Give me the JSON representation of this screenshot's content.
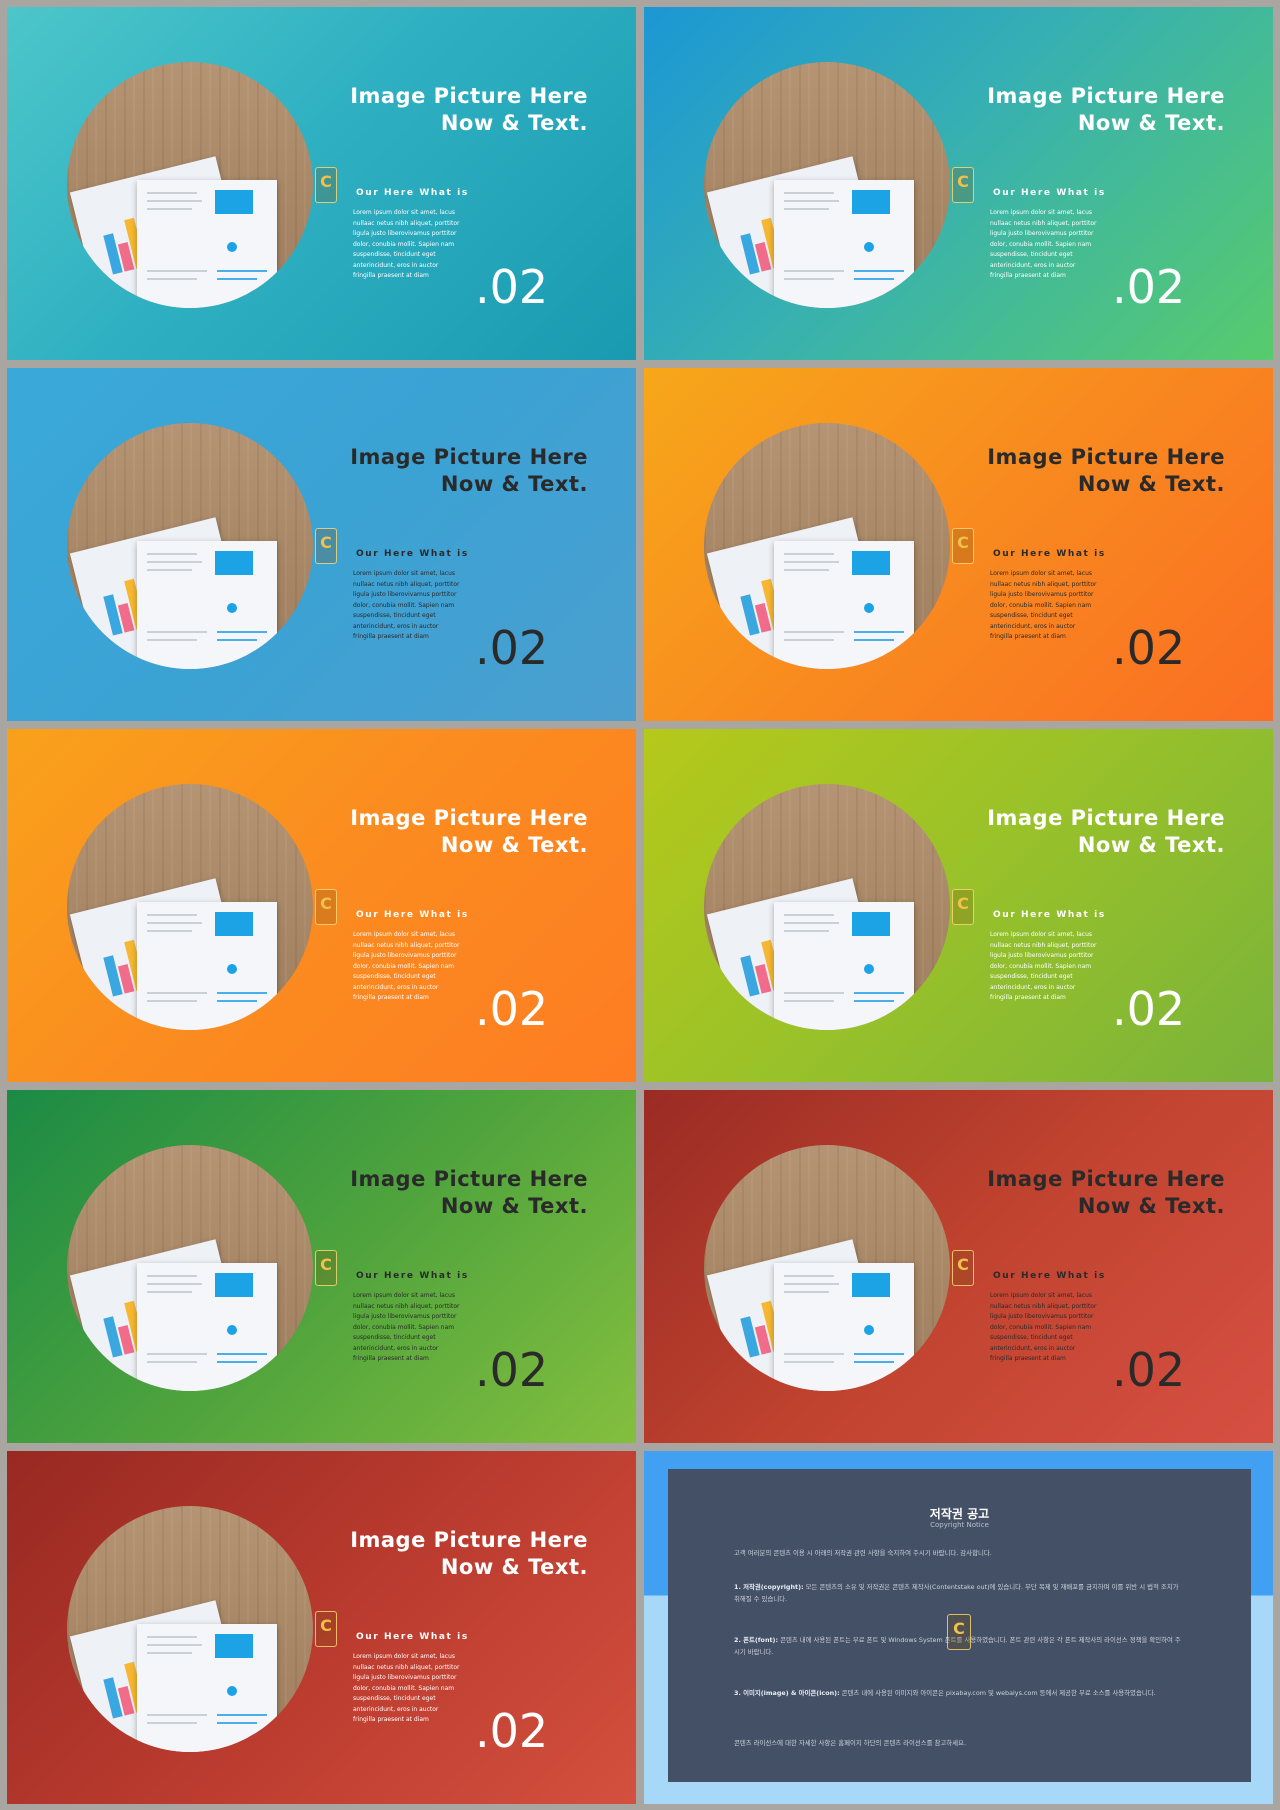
{
  "slides": [
    {
      "title_line1": "Image Picture Here",
      "title_line2": "Now & Text.",
      "subtitle": "Our Here What is",
      "body": "Lorem ipsum dolor sit amet, lacus nullaac netus nibh aliquet, porttitor ligula justo liberovivamus porttitor dolor, conubia mollit. Sapien nam suspendisse, tincidunt eget anterincidunt, eros in auctor fringilla praesent at diam",
      "number": ".02",
      "scheme": "light"
    },
    {
      "title_line1": "Image Picture Here",
      "title_line2": "Now & Text.",
      "subtitle": "Our Here What is",
      "body": "Lorem ipsum dolor sit amet, lacus nullaac netus nibh aliquet, porttitor ligula justo liberovivamus porttitor dolor, conubia mollit. Sapien nam suspendisse, tincidunt eget anterincidunt, eros in auctor fringilla praesent at diam",
      "number": ".02",
      "scheme": "light"
    },
    {
      "title_line1": "Image Picture Here",
      "title_line2": "Now & Text.",
      "subtitle": "Our Here What is",
      "body": "Lorem ipsum dolor sit amet, lacus nullaac netus nibh aliquet, porttitor ligula justo liberovivamus porttitor dolor, conubia mollit. Sapien nam suspendisse, tincidunt eget anterincidunt, eros in auctor fringilla praesent at diam",
      "number": ".02",
      "scheme": "dark"
    },
    {
      "title_line1": "Image Picture Here",
      "title_line2": "Now & Text.",
      "subtitle": "Our Here What is",
      "body": "Lorem ipsum dolor sit amet, lacus nullaac netus nibh aliquet, porttitor ligula justo liberovivamus porttitor dolor, conubia mollit. Sapien nam suspendisse, tincidunt eget anterincidunt, eros in auctor fringilla praesent at diam",
      "number": ".02",
      "scheme": "dark"
    },
    {
      "title_line1": "Image Picture Here",
      "title_line2": "Now & Text.",
      "subtitle": "Our Here What is",
      "body": "Lorem ipsum dolor sit amet, lacus nullaac netus nibh aliquet, porttitor ligula justo liberovivamus porttitor dolor, conubia mollit. Sapien nam suspendisse, tincidunt eget anterincidunt, eros in auctor fringilla praesent at diam",
      "number": ".02",
      "scheme": "light"
    },
    {
      "title_line1": "Image Picture Here",
      "title_line2": "Now & Text.",
      "subtitle": "Our Here What is",
      "body": "Lorem ipsum dolor sit amet, lacus nullaac netus nibh aliquet, porttitor ligula justo liberovivamus porttitor dolor, conubia mollit. Sapien nam suspendisse, tincidunt eget anterincidunt, eros in auctor fringilla praesent at diam",
      "number": ".02",
      "scheme": "light"
    },
    {
      "title_line1": "Image Picture Here",
      "title_line2": "Now & Text.",
      "subtitle": "Our Here What is",
      "body": "Lorem ipsum dolor sit amet, lacus nullaac netus nibh aliquet, porttitor ligula justo liberovivamus porttitor dolor, conubia mollit. Sapien nam suspendisse, tincidunt eget anterincidunt, eros in auctor fringilla praesent at diam",
      "number": ".02",
      "scheme": "dark"
    },
    {
      "title_line1": "Image Picture Here",
      "title_line2": "Now & Text.",
      "subtitle": "Our Here What is",
      "body": "Lorem ipsum dolor sit amet, lacus nullaac netus nibh aliquet, porttitor ligula justo liberovivamus porttitor dolor, conubia mollit. Sapien nam suspendisse, tincidunt eget anterincidunt, eros in auctor fringilla praesent at diam",
      "number": ".02",
      "scheme": "dark"
    },
    {
      "title_line1": "Image Picture Here",
      "title_line2": "Now & Text.",
      "subtitle": "Our Here What is",
      "body": "Lorem ipsum dolor sit amet, lacus nullaac netus nibh aliquet, porttitor ligula justo liberovivamus porttitor dolor, conubia mollit. Sapien nam suspendisse, tincidunt eget anterincidunt, eros in auctor fringilla praesent at diam",
      "number": ".02",
      "scheme": "light"
    }
  ],
  "badge_letter": "C",
  "notice": {
    "title": "저작권 공고",
    "subtitle": "Copyright Notice",
    "intro": "고객 여러분의 콘텐츠 이용 시 아래의 저작권 관련 사항을 숙지하여 주시기 바랍니다. 감사합니다.",
    "p1_label": "1. 저작권(copyright):",
    "p1_text": " 모든 콘텐츠의 소유 및 저작권은 콘텐츠 제작사(Contentstake out)에 있습니다. 무단 복제 및 재배포를 금지하며 이를 위반 시 법적 조치가 취해질 수 있습니다.",
    "p2_label": "2. 폰트(font):",
    "p2_text": " 콘텐츠 내에 사용된 폰트는 무료 폰트 및 Windows System 폰트를 사용하였습니다. 폰트 관련 사항은 각 폰트 제작사의 라이선스 정책을 확인하여 주시기 바랍니다.",
    "p3_label": "3. 이미지(image) & 아이콘(icon):",
    "p3_text": " 콘텐츠 내에 사용된 이미지와 아이콘은 pixabay.com 및 webalys.com 등에서 제공한 무료 소스를 사용하였습니다.",
    "outro": "콘텐츠 라이선스에 대한 자세한 사항은 홈페이지 하단의 콘텐츠 라이선스를 참고하세요."
  }
}
